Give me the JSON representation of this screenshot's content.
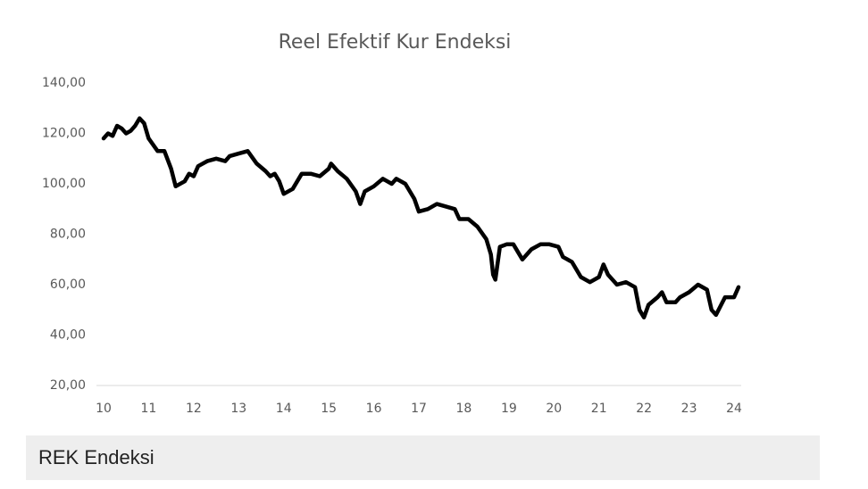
{
  "chart_data": {
    "type": "line",
    "title": "Reel Efektif Kur Endeksi",
    "x": [
      10.0,
      10.1,
      10.2,
      10.3,
      10.4,
      10.5,
      10.6,
      10.7,
      10.8,
      10.9,
      11.0,
      11.2,
      11.35,
      11.5,
      11.6,
      11.8,
      11.9,
      12.0,
      12.1,
      12.3,
      12.5,
      12.7,
      12.8,
      13.0,
      13.2,
      13.4,
      13.6,
      13.7,
      13.8,
      13.9,
      14.0,
      14.2,
      14.4,
      14.6,
      14.8,
      15.0,
      15.05,
      15.2,
      15.4,
      15.6,
      15.7,
      15.8,
      16.0,
      16.2,
      16.3,
      16.4,
      16.5,
      16.7,
      16.9,
      17.0,
      17.2,
      17.4,
      17.6,
      17.8,
      17.9,
      18.1,
      18.3,
      18.5,
      18.6,
      18.65,
      18.7,
      18.8,
      18.95,
      19.1,
      19.3,
      19.5,
      19.7,
      19.9,
      20.1,
      20.2,
      20.4,
      20.6,
      20.8,
      21.0,
      21.1,
      21.2,
      21.4,
      21.6,
      21.8,
      21.9,
      22.0,
      22.1,
      22.3,
      22.4,
      22.5,
      22.7,
      22.8,
      23.0,
      23.2,
      23.4,
      23.5,
      23.6,
      23.8,
      24.0,
      24.1
    ],
    "series": [
      {
        "name": "REK",
        "color": "#000000",
        "values": [
          118,
          120,
          119,
          123,
          122,
          120,
          121,
          123,
          126,
          124,
          118,
          113,
          113,
          106,
          99,
          101,
          104,
          103,
          107,
          109,
          110,
          109,
          111,
          112,
          113,
          108,
          105,
          103,
          104,
          101,
          96,
          98,
          104,
          104,
          103,
          106,
          108,
          105,
          102,
          97,
          92,
          97,
          99,
          102,
          101,
          100,
          102,
          100,
          94,
          89,
          90,
          92,
          91,
          90,
          86,
          86,
          83,
          78,
          72,
          64,
          62,
          75,
          76,
          76,
          70,
          74,
          76,
          76,
          75,
          71,
          69,
          63,
          61,
          63,
          68,
          64,
          60,
          61,
          59,
          50,
          47,
          52,
          55,
          57,
          53,
          53,
          55,
          57,
          60,
          58,
          50,
          48,
          55,
          55,
          59
        ]
      }
    ],
    "xlim": [
      10,
      24
    ],
    "xticks": [
      10,
      11,
      12,
      13,
      14,
      15,
      16,
      17,
      18,
      19,
      20,
      21,
      22,
      23,
      24
    ],
    "ylim": [
      20,
      140
    ],
    "yticks": [
      {
        "value": 20,
        "label": "20,00"
      },
      {
        "value": 40,
        "label": "40,00"
      },
      {
        "value": 60,
        "label": "60,00"
      },
      {
        "value": 80,
        "label": "80,00"
      },
      {
        "value": 100,
        "label": "100,00"
      },
      {
        "value": 120,
        "label": "120,00"
      },
      {
        "value": 140,
        "label": "140,00"
      }
    ],
    "grid": false
  },
  "caption": "REK Endeksi"
}
